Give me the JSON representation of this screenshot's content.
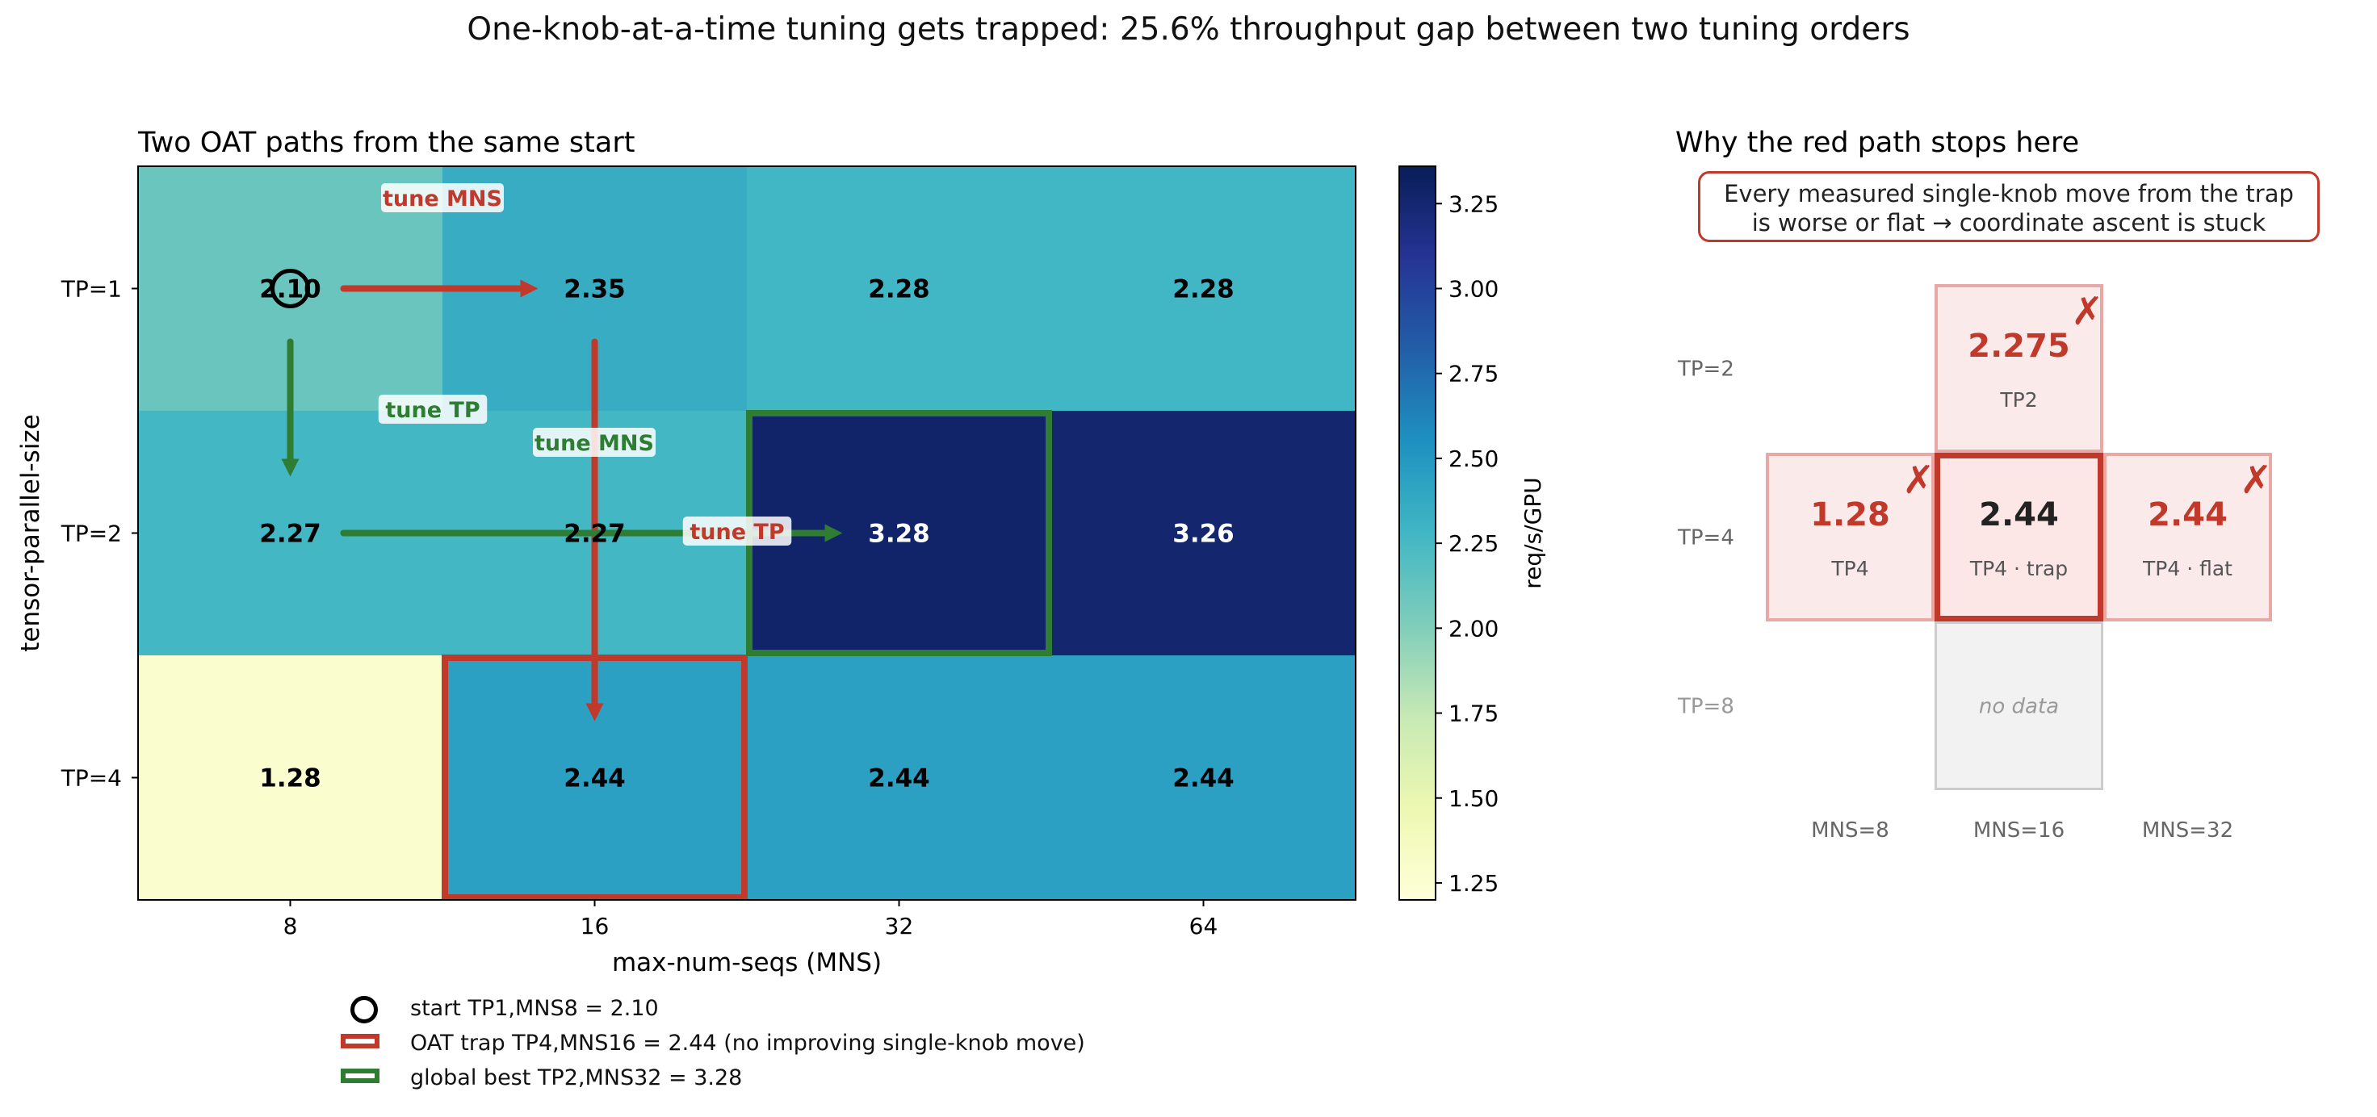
{
  "title": "One-knob-at-a-time tuning gets trapped: 25.6% throughput gap between two tuning orders",
  "chart_data": [
    {
      "type": "heatmap",
      "title": "Two OAT paths from the same start",
      "xlabel": "max-num-seqs (MNS)",
      "ylabel": "tensor-parallel-size",
      "x_categories": [
        "8",
        "16",
        "32",
        "64"
      ],
      "y_categories": [
        "TP=1",
        "TP=2",
        "TP=4"
      ],
      "values": [
        [
          2.1,
          2.35,
          2.28,
          2.28
        ],
        [
          2.27,
          2.27,
          3.28,
          3.26
        ],
        [
          1.28,
          2.44,
          2.44,
          2.44
        ]
      ],
      "value_labels": [
        [
          "2.10",
          "2.35",
          "2.28",
          "2.28"
        ],
        [
          "2.27",
          "2.27",
          "3.28",
          "3.26"
        ],
        [
          "1.28",
          "2.44",
          "2.44",
          "2.44"
        ]
      ],
      "colorbar": {
        "label": "req/s/GPU",
        "ticks": [
          "1.25",
          "1.50",
          "1.75",
          "2.00",
          "2.25",
          "2.50",
          "2.75",
          "3.00",
          "3.25"
        ],
        "range": [
          1.2,
          3.36
        ],
        "colormap": "YlGnBu"
      },
      "paths": [
        {
          "color": "#c0392b",
          "steps": [
            {
              "label": "tune MNS",
              "from": [
                0,
                0
              ],
              "to": [
                0,
                1
              ]
            },
            {
              "label": "tune TP",
              "from": [
                0,
                1
              ],
              "to": [
                2,
                1
              ]
            }
          ]
        },
        {
          "color": "#2e7d32",
          "steps": [
            {
              "label": "tune TP",
              "from": [
                0,
                0
              ],
              "to": [
                1,
                0
              ]
            },
            {
              "label": "tune MNS",
              "from": [
                1,
                0
              ],
              "to": [
                1,
                2
              ]
            }
          ]
        }
      ],
      "legend": [
        {
          "marker": "circle",
          "color": "#000000",
          "text": "start  TP1,MNS8 = 2.10"
        },
        {
          "marker": "rect",
          "color": "#c0392b",
          "text": "OAT trap  TP4,MNS16 = 2.44  (no improving single-knob move)"
        },
        {
          "marker": "rect",
          "color": "#2e7d32",
          "text": "global best  TP2,MNS32 = 3.28"
        }
      ],
      "legend_position": "below"
    },
    {
      "type": "diagram",
      "title": "Why the red path stops here",
      "callout": "Every measured single-knob move from the trap is worse or flat → coordinate ascent is stuck",
      "callout_lines": [
        "Every measured single-knob move from the trap",
        "is worse or flat → coordinate ascent is stuck"
      ],
      "row_labels": [
        "TP=2",
        "TP=4",
        "TP=8"
      ],
      "col_labels": [
        "MNS=8",
        "MNS=16",
        "MNS=32"
      ],
      "cells": [
        {
          "row": 0,
          "col": 1,
          "value": "2.275",
          "sub": "TP2",
          "kind": "worse"
        },
        {
          "row": 1,
          "col": 0,
          "value": "1.28",
          "sub": "TP4",
          "kind": "worse"
        },
        {
          "row": 1,
          "col": 1,
          "value": "2.44",
          "sub": "TP4 · trap",
          "kind": "trap"
        },
        {
          "row": 1,
          "col": 2,
          "value": "2.44",
          "sub": "TP4 · flat",
          "kind": "flat"
        },
        {
          "row": 2,
          "col": 1,
          "value": "no data",
          "sub": "",
          "kind": "nodata"
        }
      ],
      "cross_mark": "✗",
      "colors": {
        "red": "#c0392b",
        "green": "#2e7d32",
        "pink_fill": "#fbeaea",
        "pink_border": "#e8a8a6",
        "trap_fill": "#fde6e6",
        "nodata_fill": "#f2f2f2"
      }
    }
  ]
}
